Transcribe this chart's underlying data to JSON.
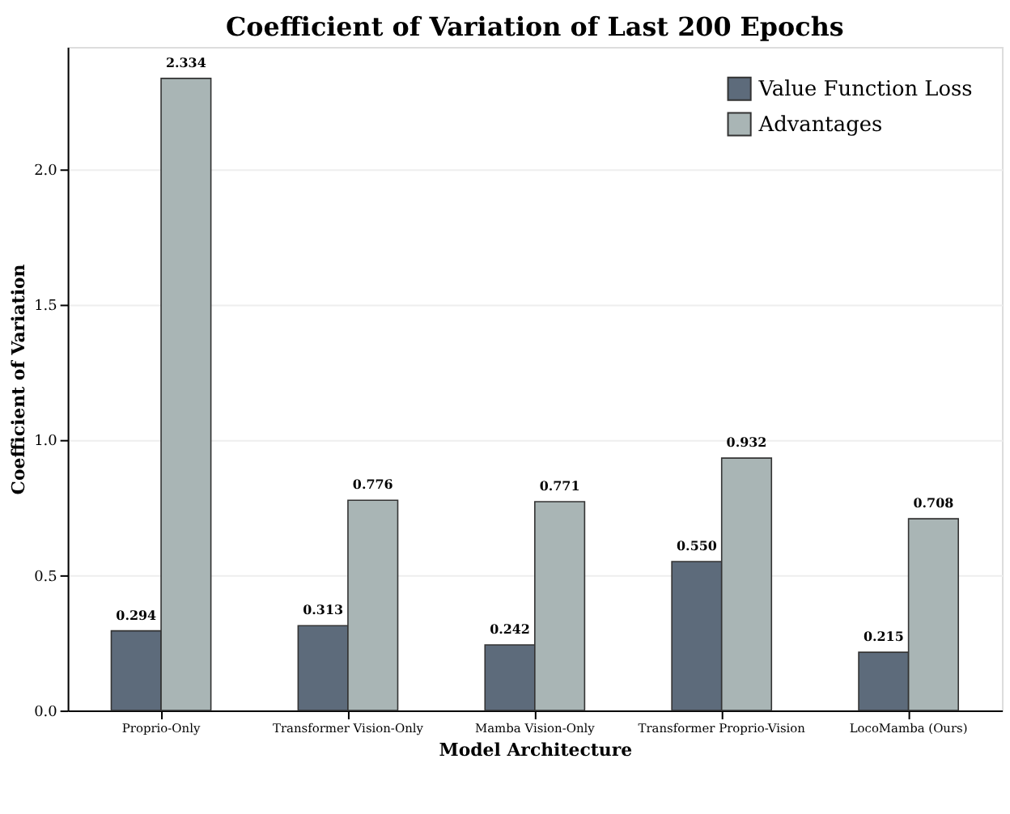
{
  "chart_data": {
    "type": "bar",
    "title": "Coefficient of Variation of Last 200 Epochs",
    "xlabel": "Model Architecture",
    "ylabel": "Coefficient of Variation",
    "categories": [
      "Proprio-Only",
      "Transformer Vision-Only",
      "Mamba Vision-Only",
      "Transformer Proprio-Vision",
      "LocoMamba (Ours)"
    ],
    "series": [
      {
        "name": "Value Function Loss",
        "color": "#5d6b7b",
        "values": [
          0.294,
          0.313,
          0.242,
          0.55,
          0.215
        ],
        "value_labels": [
          "0.294",
          "0.313",
          "0.242",
          "0.550",
          "0.215"
        ]
      },
      {
        "name": "Advantages",
        "color": "#a9b5b5",
        "values": [
          2.334,
          0.776,
          0.771,
          0.932,
          0.708
        ],
        "value_labels": [
          "2.334",
          "0.776",
          "0.771",
          "0.932",
          "0.708"
        ]
      }
    ],
    "ylim": [
      0,
      2.45
    ],
    "yticks": [
      {
        "value": 0,
        "label": "0.0"
      },
      0.5,
      {
        "value": 1,
        "label": "1.0"
      },
      1.5,
      {
        "value": 2,
        "label": "2.0"
      }
    ],
    "grid": "y",
    "legend": "top right"
  }
}
